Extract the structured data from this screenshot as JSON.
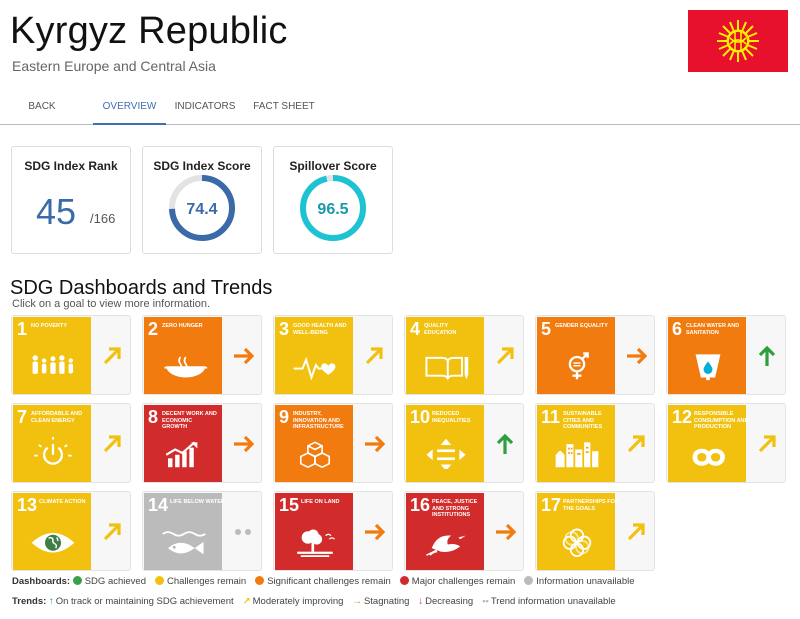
{
  "header": {
    "country": "Kyrgyz Republic",
    "region": "Eastern Europe and Central Asia"
  },
  "nav": {
    "tabs": [
      "BACK",
      "OVERVIEW",
      "INDICATORS",
      "FACT SHEET"
    ],
    "active": "OVERVIEW"
  },
  "scores": {
    "rank": {
      "label": "SDG Index Rank",
      "value": "45",
      "total": "/166"
    },
    "index": {
      "label": "SDG Index Score",
      "value": "74.4",
      "percent": 74.4,
      "color": "#3b6aa8"
    },
    "spillover": {
      "label": "Spillover Score",
      "value": "96.5",
      "percent": 96.5,
      "color": "#1ec3d3"
    }
  },
  "dashboard": {
    "title": "SDG Dashboards and Trends",
    "subtitle": "Click on a goal to view more information."
  },
  "goals": [
    {
      "num": "1",
      "name": "NO POVERTY",
      "status": "Challenges remain",
      "trend": "Moderately improving",
      "icon": "family-icon"
    },
    {
      "num": "2",
      "name": "ZERO HUNGER",
      "status": "Significant challenges remain",
      "trend": "Stagnating",
      "icon": "bowl-icon"
    },
    {
      "num": "3",
      "name": "GOOD HEALTH AND WELL-BEING",
      "status": "Challenges remain",
      "trend": "Moderately improving",
      "icon": "heartbeat-icon"
    },
    {
      "num": "4",
      "name": "QUALITY EDUCATION",
      "status": "Challenges remain",
      "trend": "Moderately improving",
      "icon": "book-icon"
    },
    {
      "num": "5",
      "name": "GENDER EQUALITY",
      "status": "Significant challenges remain",
      "trend": "Stagnating",
      "icon": "gender-icon"
    },
    {
      "num": "6",
      "name": "CLEAN WATER AND SANITATION",
      "status": "Significant challenges remain",
      "trend": "On track or maintaining SDG achievement",
      "icon": "water-icon"
    },
    {
      "num": "7",
      "name": "AFFORDABLE AND CLEAN ENERGY",
      "status": "Challenges remain",
      "trend": "Moderately improving",
      "icon": "power-icon"
    },
    {
      "num": "8",
      "name": "DECENT WORK AND ECONOMIC GROWTH",
      "status": "Major challenges remain",
      "trend": "Stagnating",
      "icon": "growth-chart-icon"
    },
    {
      "num": "9",
      "name": "INDUSTRY, INNOVATION AND INFRASTRUCTURE",
      "status": "Significant challenges remain",
      "trend": "Stagnating",
      "icon": "cubes-icon"
    },
    {
      "num": "10",
      "name": "REDUCED INEQUALITIES",
      "status": "Challenges remain",
      "trend": "On track or maintaining SDG achievement",
      "icon": "equality-icon"
    },
    {
      "num": "11",
      "name": "SUSTAINABLE CITIES AND COMMUNITIES",
      "status": "Challenges remain",
      "trend": "Moderately improving",
      "icon": "city-icon"
    },
    {
      "num": "12",
      "name": "RESPONSIBLE CONSUMPTION AND PRODUCTION",
      "status": "Challenges remain",
      "trend": "Moderately improving",
      "icon": "infinity-icon"
    },
    {
      "num": "13",
      "name": "CLIMATE ACTION",
      "status": "Challenges remain",
      "trend": "Moderately improving",
      "icon": "eye-globe-icon"
    },
    {
      "num": "14",
      "name": "LIFE BELOW WATER",
      "status": "Information unavailable",
      "trend": "Trend information unavailable",
      "icon": "fish-icon"
    },
    {
      "num": "15",
      "name": "LIFE ON LAND",
      "status": "Major challenges remain",
      "trend": "Stagnating",
      "icon": "tree-icon"
    },
    {
      "num": "16",
      "name": "PEACE, JUSTICE AND STRONG INSTITUTIONS",
      "status": "Major challenges remain",
      "trend": "Stagnating",
      "icon": "dove-icon"
    },
    {
      "num": "17",
      "name": "PARTNERSHIPS FOR THE GOALS",
      "status": "Challenges remain",
      "trend": "Moderately improving",
      "icon": "rings-icon"
    }
  ],
  "status_colors": {
    "SDG achieved": "#3aa04a",
    "Challenges remain": "#f2c10f",
    "Significant challenges remain": "#f27b0f",
    "Major challenges remain": "#d22b2b",
    "Information unavailable": "#bbbbbb"
  },
  "trend_colors": {
    "On track or maintaining SDG achievement": "#2e9e3e",
    "Moderately improving": "#f2c10f",
    "Stagnating": "#f27b0f",
    "Decreasing": "#d22b2b",
    "Trend information unavailable": "#bbbbbb"
  },
  "legend": {
    "dashboards_label": "Dashboards:",
    "dashboards": [
      "SDG achieved",
      "Challenges remain",
      "Significant challenges remain",
      "Major challenges remain",
      "Information unavailable"
    ],
    "trends_label": "Trends:",
    "trends": [
      {
        "label": "On track or maintaining SDG achievement",
        "glyph": "↑"
      },
      {
        "label": "Moderately improving",
        "glyph": "↗"
      },
      {
        "label": "Stagnating",
        "glyph": "→"
      },
      {
        "label": "Decreasing",
        "glyph": "↓"
      },
      {
        "label": "Trend information unavailable",
        "glyph": "••"
      }
    ]
  }
}
